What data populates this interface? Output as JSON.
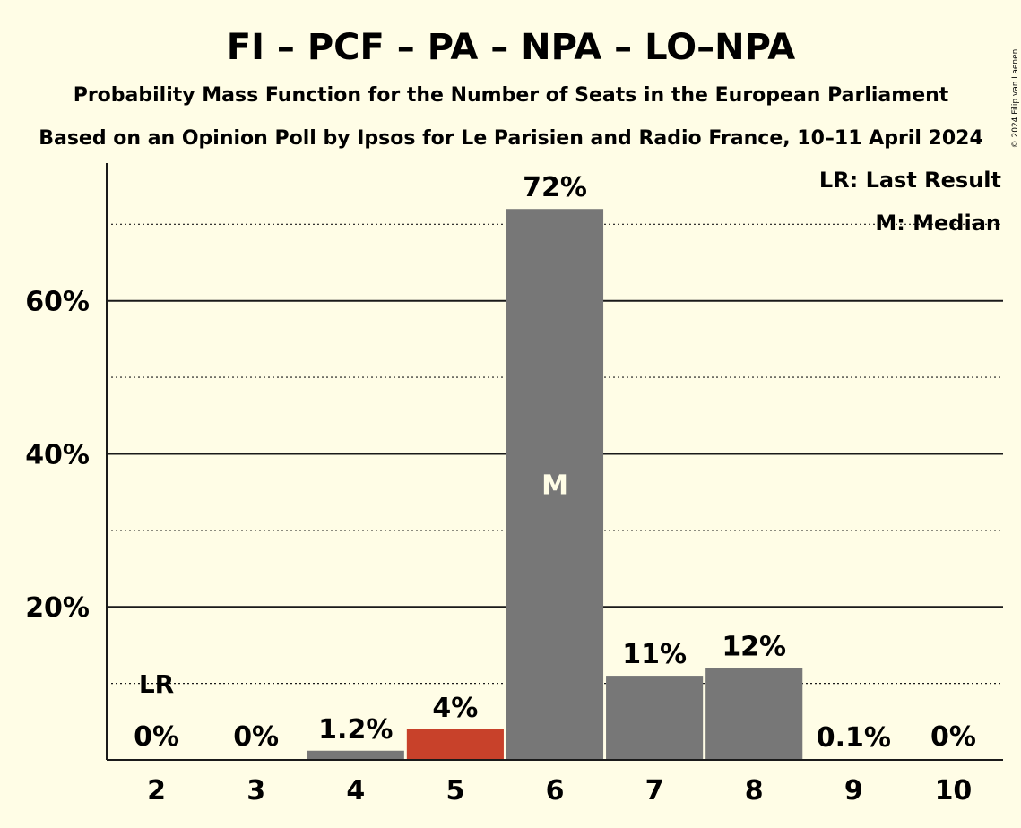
{
  "title": "FI – PCF – PA – NPA – LO–NPA",
  "subtitle1": "Probability Mass Function for the Number of Seats in the European Parliament",
  "subtitle2": "Based on an Opinion Poll by Ipsos for Le Parisien and Radio France, 10–11 April 2024",
  "copyright": "© 2024 Filip van Laenen",
  "legend": {
    "last_result": "LR: Last Result",
    "median": "M: Median"
  },
  "colors": {
    "background": "#fffde6",
    "bar": "#777777",
    "highlight": "#c8412a",
    "text": "#1a1a1a"
  },
  "chart_data": {
    "type": "bar",
    "categories": [
      "2",
      "3",
      "4",
      "5",
      "6",
      "7",
      "8",
      "9",
      "10"
    ],
    "values": [
      0,
      0,
      1.2,
      4,
      72,
      11,
      12,
      0.1,
      0
    ],
    "labels": [
      "0%",
      "0%",
      "1.2%",
      "4%",
      "72%",
      "11%",
      "12%",
      "0.1%",
      "0%"
    ],
    "highlight_category": "5",
    "median_category": "6",
    "median_marker": "M",
    "last_result_category": "2",
    "last_result_marker": "LR",
    "ylim": [
      0,
      78
    ],
    "yticks": [
      20,
      40,
      60
    ],
    "ytick_labels": [
      "20%",
      "40%",
      "60%"
    ],
    "minor_gridlines": [
      10,
      30,
      50,
      70
    ],
    "xlabel": "",
    "ylabel": ""
  }
}
